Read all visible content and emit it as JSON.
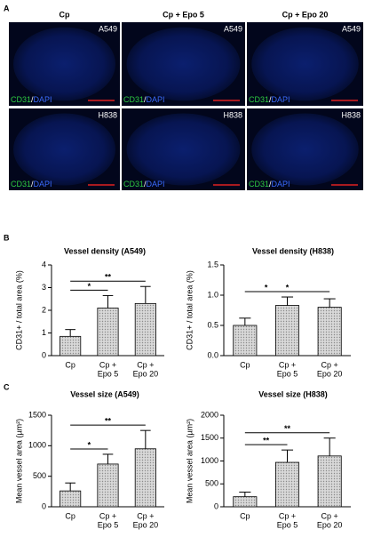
{
  "panel_labels": [
    "A",
    "B",
    "C"
  ],
  "panel_a": {
    "columns": [
      "Cp",
      "Cp + Epo 5",
      "Cp + Epo 20"
    ],
    "rows": [
      "A549",
      "H838"
    ],
    "stain": [
      "CD31",
      "/",
      "DAPI"
    ]
  },
  "chart_data": [
    {
      "type": "bar",
      "title": "Vessel density (A549)",
      "y_label": "CD31+ / total area (%)",
      "categories": [
        [
          "Cp"
        ],
        [
          "Cp +",
          "Epo 5"
        ],
        [
          "Cp +",
          "Epo 20"
        ]
      ],
      "values": [
        0.85,
        2.1,
        2.3
      ],
      "errors": [
        0.3,
        0.55,
        0.75
      ],
      "color": "#c4c4c4",
      "ylim": [
        0,
        4
      ],
      "yticks": [
        0,
        1,
        2,
        3,
        4
      ],
      "annotations": [
        {
          "label": "*",
          "groups": [
            0,
            1
          ]
        },
        {
          "label": "**",
          "groups": [
            0,
            2
          ]
        }
      ]
    },
    {
      "type": "bar",
      "title": "Vessel density (H838)",
      "y_label": "CD31+ / total area (%)",
      "categories": [
        [
          "Cp"
        ],
        [
          "Cp +",
          "Epo 5"
        ],
        [
          "Cp +",
          "Epo 20"
        ]
      ],
      "values": [
        0.5,
        0.83,
        0.8
      ],
      "errors": [
        0.12,
        0.14,
        0.14
      ],
      "color": "#c4c4c4",
      "ylim": [
        0,
        1.5
      ],
      "yticks": [
        {
          "value": 0,
          "label": "0.0"
        },
        0.5,
        {
          "value": 1,
          "label": "1.0"
        },
        1.5
      ],
      "annotations": [
        {
          "label": "*",
          "groups": [
            0,
            1
          ]
        },
        {
          "label": "*",
          "groups": [
            0,
            2
          ]
        }
      ]
    },
    {
      "type": "bar",
      "title": "Vessel size (A549)",
      "y_label": "Mean vessel area (µm²)",
      "categories": [
        [
          "Cp"
        ],
        [
          "Cp +",
          "Epo 5"
        ],
        [
          "Cp +",
          "Epo 20"
        ]
      ],
      "values": [
        260,
        700,
        950
      ],
      "errors": [
        130,
        160,
        300
      ],
      "color": "#c4c4c4",
      "ylim": [
        0,
        1500
      ],
      "yticks": [
        0,
        500,
        1000,
        1500
      ],
      "annotations": [
        {
          "label": "*",
          "groups": [
            0,
            1
          ]
        },
        {
          "label": "**",
          "groups": [
            0,
            2
          ]
        }
      ]
    },
    {
      "type": "bar",
      "title": "Vessel size (H838)",
      "y_label": "Mean vessel area (µm²)",
      "categories": [
        [
          "Cp"
        ],
        [
          "Cp +",
          "Epo 5"
        ],
        [
          "Cp +",
          "Epo 20"
        ]
      ],
      "values": [
        220,
        970,
        1110
      ],
      "errors": [
        100,
        270,
        390
      ],
      "color": "#c4c4c4",
      "ylim": [
        0,
        2000
      ],
      "yticks": [
        0,
        500,
        1000,
        1500,
        2000
      ],
      "annotations": [
        {
          "label": "**",
          "groups": [
            0,
            1
          ]
        },
        {
          "label": "**",
          "groups": [
            0,
            2
          ]
        }
      ]
    }
  ]
}
